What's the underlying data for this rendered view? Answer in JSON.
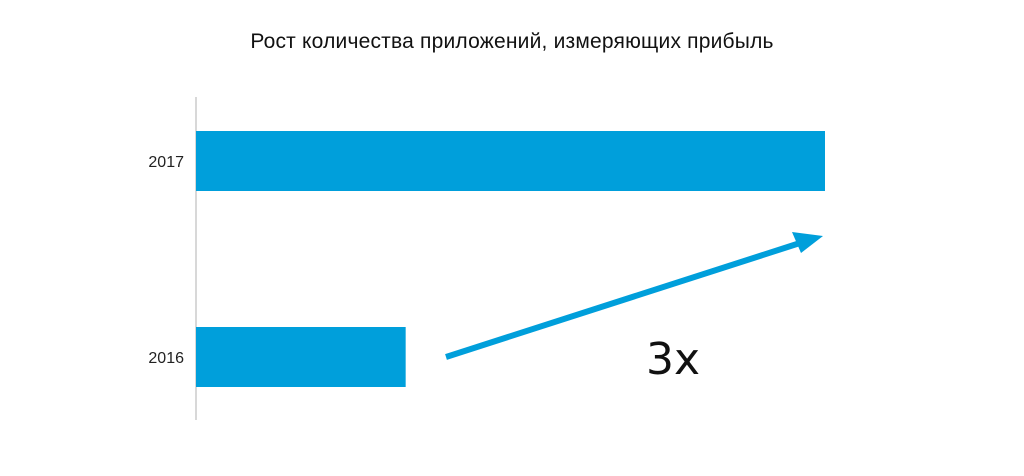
{
  "chart_data": {
    "type": "bar",
    "orientation": "horizontal",
    "title": "Рост количества приложений, измеряющих прибыль",
    "categories": [
      "2017",
      "2016"
    ],
    "values": [
      3,
      1
    ],
    "xlim": [
      0,
      3
    ],
    "grid": false,
    "legend": "none",
    "bar_color": "#009fdb",
    "axis_color": "#cccccc",
    "annotation": {
      "label": "3x",
      "type": "arrow",
      "color": "#009fdb"
    }
  }
}
